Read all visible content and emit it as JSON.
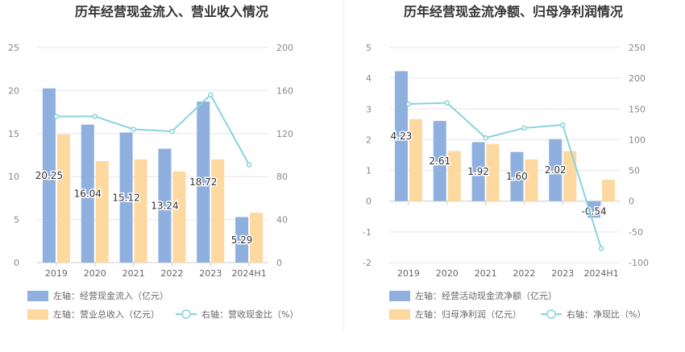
{
  "chart_data": [
    {
      "type": "bar",
      "title": "历年经营现金流入、营业收入情况",
      "categories": [
        "2019",
        "2020",
        "2021",
        "2022",
        "2023",
        "2024H1"
      ],
      "left_axis": {
        "min": 0,
        "max": 25,
        "ticks": [
          0,
          5,
          10,
          15,
          20,
          25
        ]
      },
      "right_axis": {
        "min": 0,
        "max": 200,
        "ticks": [
          0,
          40,
          80,
          120,
          160,
          200
        ]
      },
      "series": [
        {
          "name": "左轴：经营现金流入（亿元）",
          "kind": "bar",
          "axis": "left",
          "color": "#8fb0de",
          "values": [
            20.25,
            16.04,
            15.12,
            13.24,
            18.72,
            5.29
          ],
          "labels": [
            "20.25",
            "16.04",
            "15.12",
            "13.24",
            "18.72",
            "5.29"
          ]
        },
        {
          "name": "左轴：营业总收入（亿元）",
          "kind": "bar",
          "axis": "left",
          "color": "#fdd9a0",
          "values": [
            14.9,
            11.8,
            12.0,
            10.6,
            12.0,
            5.8
          ]
        },
        {
          "name": "右轴：营收现金比（%）",
          "kind": "line",
          "axis": "right",
          "color": "#88d4db",
          "values": [
            136,
            136,
            124,
            122,
            156,
            91
          ]
        }
      ]
    },
    {
      "type": "bar",
      "title": "历年经营现金流净额、归母净利润情况",
      "categories": [
        "2019",
        "2020",
        "2021",
        "2022",
        "2023",
        "2024H1"
      ],
      "left_axis": {
        "min": -2,
        "max": 5,
        "ticks": [
          -2,
          -1,
          0,
          1,
          2,
          3,
          4,
          5
        ]
      },
      "right_axis": {
        "min": -100,
        "max": 250,
        "ticks": [
          -100,
          -50,
          0,
          50,
          100,
          150,
          200,
          250
        ]
      },
      "series": [
        {
          "name": "左轴：经营活动现金流净额（亿元）",
          "kind": "bar",
          "axis": "left",
          "color": "#8fb0de",
          "values": [
            4.23,
            2.61,
            1.92,
            1.6,
            2.02,
            -0.54
          ],
          "labels": [
            "4.23",
            "2.61",
            "1.92",
            "1.60",
            "2.02",
            "-0.54"
          ]
        },
        {
          "name": "左轴：归母净利润（亿元）",
          "kind": "bar",
          "axis": "left",
          "color": "#fdd9a0",
          "values": [
            2.67,
            1.63,
            1.86,
            1.36,
            1.63,
            0.7
          ]
        },
        {
          "name": "右轴：净现比（%）",
          "kind": "line",
          "axis": "right",
          "color": "#88d4db",
          "values": [
            158,
            160,
            103,
            119,
            124,
            -77
          ]
        }
      ]
    }
  ]
}
